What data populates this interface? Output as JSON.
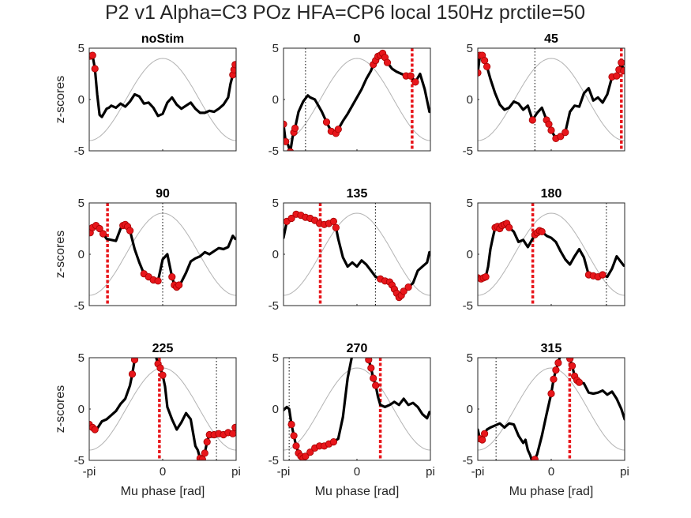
{
  "figure_title": "P2 v1 Alpha=C3 POz HFA=CP6 local 150Hz prctile=50",
  "colors": {
    "trace": "#000000",
    "significant": "#e8161b",
    "significant_edge": "#a40000",
    "reference_wave": "#b3b3b3",
    "stim_marker": "#e8161b",
    "peak_marker": "#000000"
  },
  "shared_axes": {
    "ylabel": "z-scores",
    "xlabel": "Mu phase [rad]",
    "xlim": [
      -3.1416,
      3.1416
    ],
    "ylim": [
      -5,
      5
    ],
    "xticks": [
      -3.1416,
      0,
      3.1416
    ],
    "xtick_labels": [
      "-pi",
      "0",
      "pi"
    ],
    "yticks": [
      5,
      0,
      -5
    ],
    "ytick_labels": [
      "5",
      "0",
      "-5"
    ],
    "reference_wave": "4*cos(phase)"
  },
  "chart_data": [
    {
      "type": "line",
      "title": "noStim",
      "stim_phase": null,
      "peak_phase": null,
      "x": [
        -3.14,
        -3.0,
        -2.9,
        -2.8,
        -2.7,
        -2.6,
        -2.5,
        -2.4,
        -2.3,
        -2.2,
        -2.0,
        -1.8,
        -1.6,
        -1.4,
        -1.2,
        -1.0,
        -0.8,
        -0.6,
        -0.4,
        -0.2,
        0.0,
        0.2,
        0.4,
        0.6,
        0.8,
        1.0,
        1.2,
        1.4,
        1.6,
        1.8,
        2.0,
        2.2,
        2.4,
        2.6,
        2.8,
        2.9,
        3.0,
        3.1
      ],
      "y": [
        4.2,
        4.3,
        3.0,
        0.5,
        -1.5,
        -1.7,
        -1.3,
        -0.9,
        -0.8,
        -0.6,
        -0.8,
        -0.4,
        -0.7,
        -0.2,
        0.5,
        0.3,
        -0.4,
        -0.3,
        -0.8,
        -1.6,
        -1.4,
        -0.3,
        0.2,
        -0.5,
        -0.9,
        -0.6,
        -0.3,
        -0.9,
        -1.3,
        -1.3,
        -1.1,
        -1.2,
        -0.9,
        -0.5,
        0.2,
        1.5,
        2.4,
        3.4
      ],
      "significant_x": [
        -3.1,
        -3.0,
        -2.9,
        3.0,
        3.05,
        3.1
      ]
    },
    {
      "type": "line",
      "title": "0",
      "stim_phase": 2.36,
      "peak_phase": -2.2,
      "x": [
        -3.14,
        -3.05,
        -2.95,
        -2.85,
        -2.75,
        -2.65,
        -2.5,
        -2.3,
        -2.1,
        -2.0,
        -1.8,
        -1.5,
        -1.3,
        -1.1,
        -0.9,
        -0.8,
        -0.6,
        -0.4,
        -0.2,
        0.0,
        0.2,
        0.4,
        0.6,
        0.7,
        0.8,
        0.9,
        1.0,
        1.1,
        1.2,
        1.3,
        1.5,
        1.7,
        1.9,
        2.1,
        2.3,
        2.5,
        2.7,
        2.9,
        3.1
      ],
      "y": [
        -2.4,
        -4.1,
        -4.4,
        -5.1,
        -3.6,
        -2.8,
        -1.2,
        -0.2,
        0.4,
        0.2,
        0.0,
        -1.2,
        -2.2,
        -3.1,
        -3.3,
        -2.9,
        -2.1,
        -1.4,
        -0.6,
        0.2,
        1.0,
        2.0,
        2.8,
        3.4,
        3.8,
        4.2,
        4.3,
        4.5,
        4.1,
        3.6,
        3.0,
        2.7,
        2.5,
        2.3,
        2.3,
        1.7,
        2.5,
        1.0,
        -1.2
      ],
      "significant_x": [
        -3.14,
        -3.05,
        -2.85,
        -2.7,
        -2.65,
        -1.3,
        -1.1,
        -0.9,
        -0.8,
        0.7,
        0.8,
        0.9,
        1.0,
        1.1,
        1.2,
        1.3,
        2.1,
        2.3,
        2.5
      ]
    },
    {
      "type": "line",
      "title": "45",
      "stim_phase": 3.0,
      "peak_phase": -0.7,
      "x": [
        -3.14,
        -3.05,
        -2.95,
        -2.85,
        -2.75,
        -2.6,
        -2.4,
        -2.2,
        -2.0,
        -1.8,
        -1.6,
        -1.4,
        -1.2,
        -1.0,
        -0.8,
        -0.6,
        -0.4,
        -0.2,
        -0.1,
        0.0,
        0.2,
        0.4,
        0.6,
        0.8,
        1.0,
        1.2,
        1.4,
        1.6,
        1.8,
        2.0,
        2.2,
        2.4,
        2.6,
        2.8,
        2.9,
        3.0,
        3.1
      ],
      "y": [
        2.6,
        4.3,
        4.3,
        3.8,
        3.2,
        2.0,
        0.6,
        -0.5,
        -1.0,
        -0.8,
        -0.2,
        -0.4,
        -1.0,
        -0.6,
        -2.0,
        -1.3,
        -0.8,
        -2.0,
        -2.4,
        -3.0,
        -3.8,
        -3.6,
        -3.2,
        -1.2,
        -0.6,
        -0.7,
        0.6,
        1.1,
        -0.1,
        0.2,
        -0.3,
        0.5,
        2.2,
        2.3,
        2.9,
        3.6,
        2.8
      ],
      "significant_x": [
        -3.14,
        -3.05,
        -2.95,
        -2.85,
        -2.75,
        -0.8,
        -0.2,
        -0.1,
        0.0,
        0.2,
        0.4,
        0.6,
        2.6,
        2.8,
        2.9,
        3.0,
        3.1
      ]
    },
    {
      "type": "line",
      "title": "90",
      "stim_phase": -2.36,
      "peak_phase": 0.0,
      "x": [
        -3.14,
        -3.0,
        -2.85,
        -2.7,
        -2.55,
        -2.4,
        -2.2,
        -2.0,
        -1.8,
        -1.7,
        -1.6,
        -1.5,
        -1.4,
        -1.2,
        -1.0,
        -0.8,
        -0.6,
        -0.4,
        -0.2,
        0.0,
        0.2,
        0.4,
        0.5,
        0.6,
        0.7,
        0.8,
        1.0,
        1.2,
        1.4,
        1.6,
        1.8,
        2.0,
        2.2,
        2.4,
        2.6,
        2.8,
        3.0,
        3.1
      ],
      "y": [
        1.9,
        2.6,
        2.8,
        2.5,
        2.0,
        1.5,
        1.4,
        1.3,
        2.5,
        2.8,
        2.9,
        2.7,
        2.3,
        0.5,
        -0.8,
        -1.9,
        -2.2,
        -2.5,
        -2.6,
        -0.5,
        0.0,
        -2.2,
        -3.0,
        -3.2,
        -3.0,
        -2.7,
        -1.8,
        -0.7,
        -0.4,
        -0.2,
        0.2,
        0.0,
        0.3,
        0.6,
        0.5,
        0.7,
        1.8,
        1.5
      ],
      "significant_x": [
        -3.1,
        -3.0,
        -2.85,
        -2.7,
        -2.55,
        -1.7,
        -1.6,
        -1.5,
        -1.4,
        -0.8,
        -0.6,
        -0.4,
        -0.2,
        0.4,
        0.5,
        0.6,
        0.7
      ]
    },
    {
      "type": "line",
      "title": "135",
      "stim_phase": -1.57,
      "peak_phase": 0.79,
      "x": [
        -3.14,
        -3.0,
        -2.8,
        -2.6,
        -2.4,
        -2.2,
        -2.0,
        -1.8,
        -1.6,
        -1.4,
        -1.2,
        -1.0,
        -0.9,
        -0.8,
        -0.6,
        -0.4,
        -0.2,
        0.0,
        0.2,
        0.4,
        0.6,
        0.8,
        1.0,
        1.2,
        1.4,
        1.5,
        1.6,
        1.7,
        1.8,
        1.9,
        2.0,
        2.2,
        2.4,
        2.6,
        2.8,
        3.0,
        3.1
      ],
      "y": [
        1.6,
        3.2,
        3.5,
        3.9,
        3.8,
        3.6,
        3.5,
        3.3,
        3.0,
        2.9,
        3.0,
        3.2,
        2.6,
        1.5,
        -0.3,
        -1.2,
        -0.8,
        -1.2,
        -0.6,
        -1.0,
        -1.6,
        -2.2,
        -2.4,
        -2.6,
        -2.7,
        -3.0,
        -3.4,
        -3.8,
        -4.2,
        -4.0,
        -3.6,
        -3.2,
        -2.8,
        -1.6,
        -1.2,
        -0.8,
        0.2
      ],
      "significant_x": [
        -3.0,
        -2.8,
        -2.6,
        -2.4,
        -2.2,
        -2.0,
        -1.8,
        -1.6,
        -1.4,
        -1.2,
        -1.0,
        -0.9,
        1.0,
        1.2,
        1.4,
        1.5,
        1.6,
        1.7,
        1.8,
        1.9,
        2.0,
        2.2
      ]
    },
    {
      "type": "line",
      "title": "180",
      "stim_phase": -0.79,
      "peak_phase": 2.36,
      "x": [
        -3.14,
        -3.0,
        -2.9,
        -2.8,
        -2.7,
        -2.6,
        -2.5,
        -2.4,
        -2.3,
        -2.2,
        -2.1,
        -2.0,
        -1.9,
        -1.8,
        -1.7,
        -1.6,
        -1.4,
        -1.2,
        -1.0,
        -0.8,
        -0.7,
        -0.6,
        -0.5,
        -0.4,
        -0.2,
        0.0,
        0.2,
        0.4,
        0.6,
        0.8,
        1.0,
        1.2,
        1.4,
        1.6,
        1.8,
        2.0,
        2.2,
        2.4,
        2.6,
        2.8,
        3.0,
        3.1
      ],
      "y": [
        -2.3,
        -2.4,
        -2.3,
        -2.2,
        -1.2,
        0.5,
        1.6,
        2.6,
        2.7,
        2.5,
        2.8,
        2.9,
        3.0,
        2.6,
        2.4,
        2.2,
        1.2,
        1.4,
        0.7,
        1.5,
        1.9,
        2.1,
        2.3,
        2.2,
        1.8,
        1.6,
        1.2,
        0.3,
        -0.5,
        -1.0,
        -0.2,
        0.5,
        -0.3,
        -2.0,
        -2.1,
        -2.2,
        -2.0,
        -2.2,
        -1.4,
        -0.2,
        -0.8,
        -1.1
      ],
      "significant_x": [
        -3.14,
        -3.0,
        -2.9,
        -2.8,
        -2.4,
        -2.3,
        -2.2,
        -2.1,
        -2.0,
        -1.9,
        -1.8,
        -0.7,
        -0.6,
        -0.5,
        -0.4,
        1.6,
        1.8,
        2.0,
        2.2
      ]
    },
    {
      "type": "line",
      "title": "225",
      "stim_phase": -0.14,
      "peak_phase": 2.3,
      "x": [
        -3.14,
        -3.0,
        -2.9,
        -2.8,
        -2.6,
        -2.4,
        -2.2,
        -2.0,
        -1.8,
        -1.6,
        -1.4,
        -1.3,
        -1.2,
        -1.1,
        -1.0,
        -0.8,
        -0.5,
        -0.3,
        -0.2,
        -0.1,
        0.0,
        0.1,
        0.2,
        0.4,
        0.6,
        0.8,
        1.0,
        1.2,
        1.4,
        1.5,
        1.6,
        1.7,
        1.8,
        1.9,
        2.0,
        2.1,
        2.2,
        2.4,
        2.6,
        2.8,
        3.0,
        3.1
      ],
      "y": [
        -1.5,
        -1.8,
        -2.0,
        -1.9,
        -1.2,
        -1.0,
        -0.6,
        -0.2,
        0.5,
        1.0,
        2.3,
        3.4,
        4.8,
        5.4,
        6.0,
        6.5,
        6.3,
        5.2,
        4.4,
        4.0,
        3.3,
        2.2,
        0.2,
        -1.0,
        -2.0,
        -1.3,
        -0.4,
        -1.0,
        -3.6,
        -4.0,
        -4.8,
        -4.9,
        -4.3,
        -3.2,
        -2.5,
        -2.7,
        -2.5,
        -2.4,
        -2.5,
        -2.3,
        -2.4,
        -1.8
      ],
      "significant_x": [
        -3.14,
        -3.0,
        -2.9,
        -1.3,
        -1.2,
        -0.2,
        -0.1,
        0.0,
        1.6,
        1.7,
        1.8,
        1.9,
        2.0,
        2.2,
        2.4,
        2.6,
        2.8,
        3.0,
        3.1
      ]
    },
    {
      "type": "line",
      "title": "270",
      "stim_phase": 1.0,
      "peak_phase": -2.9,
      "x": [
        -3.14,
        -3.0,
        -2.9,
        -2.8,
        -2.7,
        -2.6,
        -2.5,
        -2.4,
        -2.3,
        -2.2,
        -2.0,
        -1.8,
        -1.6,
        -1.4,
        -1.2,
        -1.0,
        -0.8,
        -0.6,
        -0.4,
        -0.2,
        0.0,
        0.2,
        0.3,
        0.4,
        0.5,
        0.6,
        0.7,
        0.8,
        0.9,
        1.0,
        1.2,
        1.4,
        1.6,
        1.8,
        2.0,
        2.2,
        2.4,
        2.6,
        2.8,
        3.0,
        3.1
      ],
      "y": [
        -0.1,
        0.2,
        0.0,
        -1.5,
        -2.6,
        -3.6,
        -4.3,
        -4.6,
        -4.8,
        -4.6,
        -4.2,
        -3.8,
        -3.6,
        -3.6,
        -3.4,
        -3.2,
        -2.9,
        -0.8,
        3.0,
        5.3,
        6.5,
        6.6,
        6.0,
        5.4,
        4.8,
        4.0,
        3.0,
        2.3,
        1.2,
        0.4,
        0.2,
        0.4,
        0.7,
        0.4,
        1.0,
        0.4,
        0.6,
        0.2,
        -0.5,
        -0.9,
        -0.3
      ],
      "significant_x": [
        -2.8,
        -2.7,
        -2.6,
        -2.5,
        -2.4,
        -2.3,
        -2.2,
        -2.0,
        -1.8,
        -1.6,
        -1.4,
        -1.2,
        -1.0,
        0.4,
        0.5,
        0.6,
        0.7,
        0.8
      ]
    },
    {
      "type": "line",
      "title": "315",
      "stim_phase": 0.79,
      "peak_phase": -2.36,
      "x": [
        -3.14,
        -3.05,
        -2.95,
        -2.85,
        -2.75,
        -2.6,
        -2.4,
        -2.2,
        -2.0,
        -1.8,
        -1.6,
        -1.4,
        -1.2,
        -1.1,
        -1.0,
        -0.9,
        -0.8,
        -0.7,
        -0.6,
        -0.4,
        -0.2,
        0.0,
        0.1,
        0.2,
        0.3,
        0.4,
        0.5,
        0.6,
        0.7,
        0.8,
        0.9,
        1.0,
        1.1,
        1.2,
        1.4,
        1.6,
        1.8,
        2.0,
        2.2,
        2.4,
        2.6,
        2.8,
        3.0,
        3.14
      ],
      "y": [
        -2.0,
        -2.9,
        -3.0,
        -2.4,
        -2.0,
        -1.8,
        -1.6,
        -1.4,
        -1.8,
        -1.4,
        -1.5,
        -2.6,
        -3.3,
        -3.0,
        -4.0,
        -4.5,
        -5.2,
        -4.9,
        -4.4,
        -2.6,
        -0.5,
        1.5,
        2.9,
        3.8,
        4.5,
        5.3,
        5.6,
        6.2,
        5.2,
        4.9,
        4.2,
        3.2,
        2.8,
        2.6,
        2.5,
        1.6,
        1.5,
        1.6,
        1.8,
        1.4,
        1.7,
        1.0,
        0.0,
        -1.0
      ],
      "significant_x": [
        -3.05,
        -2.95,
        -2.85,
        -0.7,
        0.0,
        0.1,
        0.2,
        0.3,
        0.4,
        0.8,
        0.9,
        1.0,
        1.1,
        1.2
      ]
    }
  ]
}
